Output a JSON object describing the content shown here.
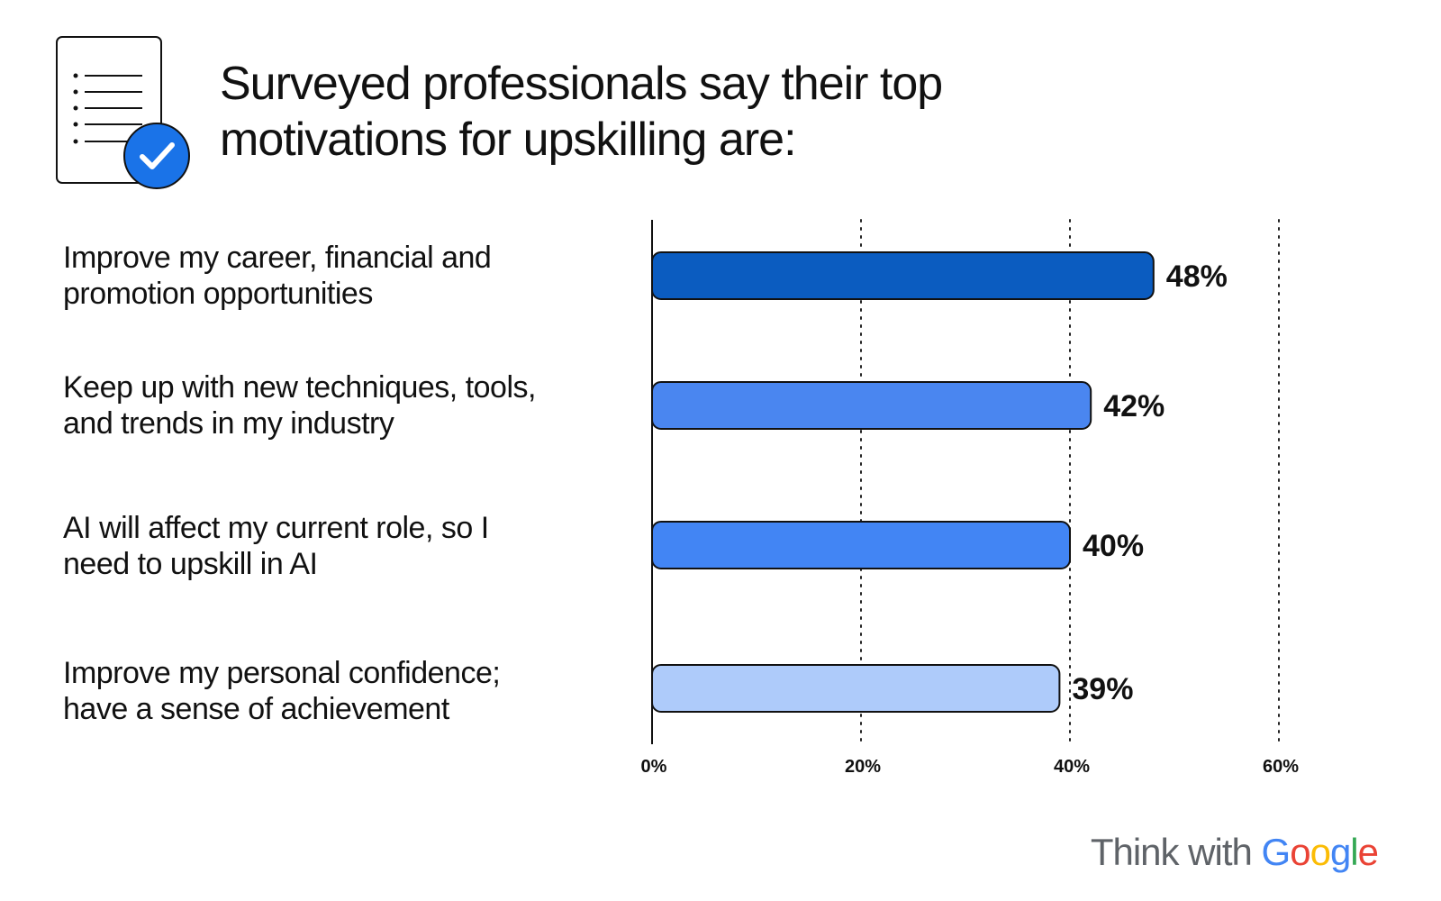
{
  "header": {
    "title_lines": [
      "Surveyed professionals say their top",
      "motivations for upskilling are:"
    ],
    "icon": "document-checklist-icon"
  },
  "chart_data": {
    "type": "bar",
    "orientation": "horizontal",
    "title": "Surveyed professionals say their top motivations for upskilling are:",
    "categories": [
      "Improve my career, financial and promotion opportunities",
      "Keep up with new techniques, tools, and trends in my industry",
      "AI will affect my current role, so I need to upskill in AI",
      "Improve my personal confidence; have a sense of achievement"
    ],
    "category_lines": [
      [
        "Improve my career, financial and",
        "promotion opportunities"
      ],
      [
        "Keep up with new techniques, tools,",
        "and trends in my industry"
      ],
      [
        "AI will affect my current role, so I",
        "need to upskill in AI"
      ],
      [
        "Improve my personal confidence;",
        "have a sense of achievement"
      ]
    ],
    "values": [
      48,
      42,
      40,
      39
    ],
    "value_labels": [
      "48%",
      "42%",
      "40%",
      "39%"
    ],
    "bar_colors": [
      "#0B5CC0",
      "#4A86F0",
      "#4285F4",
      "#AECBFA"
    ],
    "xlim": [
      0,
      60
    ],
    "xticks": [
      0,
      20,
      40,
      60
    ],
    "xtick_labels": [
      "0%",
      "20%",
      "40%",
      "60%"
    ],
    "grid": "vertical dotted",
    "legend": "none"
  },
  "brand": {
    "prefix": "Think with",
    "google_letters": [
      {
        "char": "G",
        "color": "#4285F4"
      },
      {
        "char": "o",
        "color": "#EA4335"
      },
      {
        "char": "o",
        "color": "#FBBC05"
      },
      {
        "char": "g",
        "color": "#4285F4"
      },
      {
        "char": "l",
        "color": "#34A853"
      },
      {
        "char": "e",
        "color": "#EA4335"
      }
    ]
  }
}
